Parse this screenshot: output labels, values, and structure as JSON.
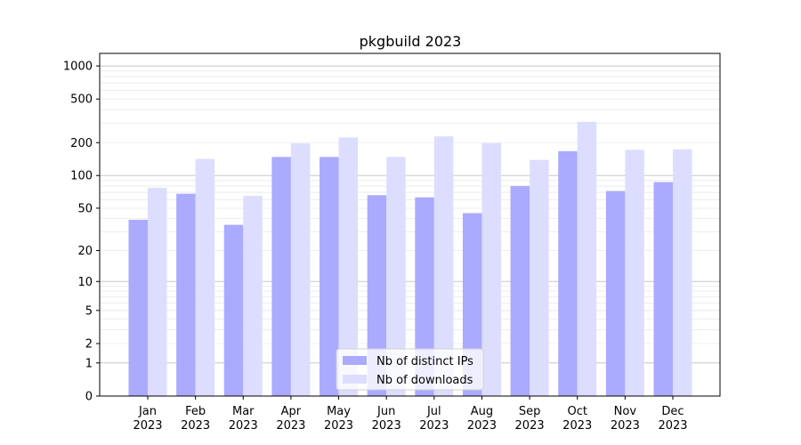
{
  "chart_data": {
    "type": "bar",
    "title": "pkgbuild 2023",
    "xlabel": "",
    "ylabel": "",
    "yscale": "symlog",
    "ylim": [
      0,
      1300
    ],
    "yticks": [
      0,
      1,
      2,
      5,
      10,
      20,
      50,
      100,
      200,
      500,
      1000
    ],
    "grid": true,
    "legend_position": "bottom-center",
    "categories": [
      "Jan\n2023",
      "Feb\n2023",
      "Mar\n2023",
      "Apr\n2023",
      "May\n2023",
      "Jun\n2023",
      "Jul\n2023",
      "Aug\n2023",
      "Sep\n2023",
      "Oct\n2023",
      "Nov\n2023",
      "Dec\n2023"
    ],
    "series": [
      {
        "name": "Nb of distinct IPs",
        "color": "#aaaaff",
        "values": [
          39,
          68,
          35,
          148,
          148,
          66,
          63,
          45,
          80,
          167,
          72,
          87
        ]
      },
      {
        "name": "Nb of downloads",
        "color": "#ddddff",
        "values": [
          77,
          142,
          65,
          197,
          223,
          148,
          228,
          198,
          139,
          310,
          172,
          174
        ]
      }
    ]
  }
}
